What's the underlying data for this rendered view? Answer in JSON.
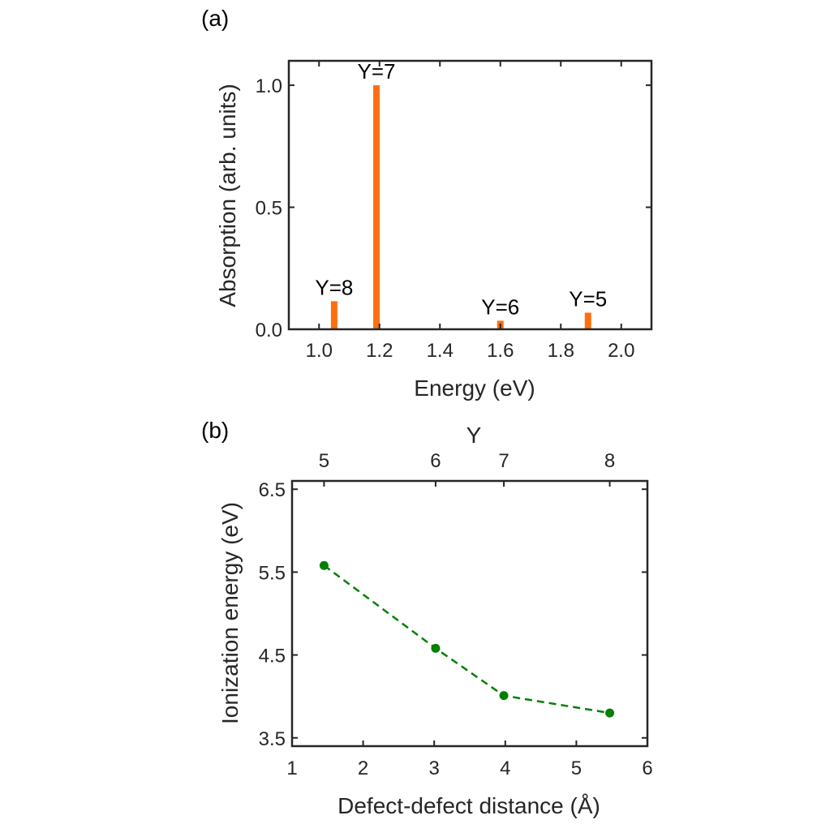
{
  "chart_data": [
    {
      "type": "bar",
      "panel": "(a)",
      "xlabel": "Energy (eV)",
      "ylabel": "Absorption (arb. units)",
      "xlim": [
        0.9,
        2.1
      ],
      "ylim": [
        0,
        1.1
      ],
      "xticks": [
        1.0,
        1.2,
        1.4,
        1.6,
        1.8,
        2.0
      ],
      "xtick_labels": [
        "1.0",
        "1.2",
        "1.4",
        "1.6",
        "1.8",
        "2.0"
      ],
      "yticks": [
        0,
        0.5,
        1.0
      ],
      "ytick_labels": [
        "0.0",
        "0.5",
        "1.0"
      ],
      "bars": [
        {
          "x": 1.05,
          "value": 0.115,
          "label": "Y=8"
        },
        {
          "x": 1.19,
          "value": 1.0,
          "label": "Y=7"
        },
        {
          "x": 1.6,
          "value": 0.035,
          "label": "Y=6"
        },
        {
          "x": 1.89,
          "value": 0.068,
          "label": "Y=5"
        }
      ],
      "color": "#ff6f0f"
    },
    {
      "type": "line",
      "panel": "(b)",
      "xlabel": "Defect-defect distance (Å)",
      "ylabel": "Ionization energy (eV)",
      "top_xlabel": "Y",
      "xlim": [
        1,
        6
      ],
      "ylim": [
        3.4,
        6.6
      ],
      "xticks": [
        1,
        2,
        3,
        4,
        5,
        6
      ],
      "xtick_labels": [
        "1",
        "2",
        "3",
        "4",
        "5",
        "6"
      ],
      "yticks": [
        3.5,
        4.5,
        5.5,
        6.5
      ],
      "ytick_labels": [
        "3.5",
        "4.5",
        "5.5",
        "6.5"
      ],
      "top_ticks": [
        {
          "x": 1.45,
          "label": "5"
        },
        {
          "x": 3.02,
          "label": "6"
        },
        {
          "x": 3.98,
          "label": "7"
        },
        {
          "x": 5.47,
          "label": "8"
        }
      ],
      "series": [
        {
          "name": "ionization",
          "x": [
            1.45,
            3.02,
            3.98,
            5.47
          ],
          "y": [
            5.58,
            4.58,
            4.01,
            3.8
          ],
          "color": "#008000",
          "style": "dashed",
          "marker": "circle"
        }
      ]
    }
  ]
}
